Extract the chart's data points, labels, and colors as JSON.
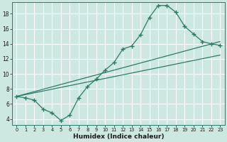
{
  "title": "",
  "xlabel": "Humidex (Indice chaleur)",
  "bg_color": "#cce8e0",
  "grid_color": "#ffffff",
  "line_color": "#2d7a6a",
  "xlim": [
    -0.5,
    23.5
  ],
  "ylim": [
    3.2,
    19.5
  ],
  "xticks": [
    0,
    1,
    2,
    3,
    4,
    5,
    6,
    7,
    8,
    9,
    10,
    11,
    12,
    13,
    14,
    15,
    16,
    17,
    18,
    19,
    20,
    21,
    22,
    23
  ],
  "yticks": [
    4,
    6,
    8,
    10,
    12,
    14,
    16,
    18
  ],
  "zigzag_x": [
    0,
    1,
    2,
    3,
    4,
    5,
    6,
    7,
    8,
    9,
    10,
    11,
    12,
    13,
    14,
    15,
    16,
    17,
    18,
    19,
    20,
    21,
    22,
    23
  ],
  "zigzag_y": [
    7.0,
    6.8,
    6.5,
    5.3,
    4.8,
    3.8,
    4.5,
    6.8,
    8.3,
    9.3,
    10.5,
    11.5,
    13.3,
    13.7,
    15.2,
    17.5,
    19.1,
    19.1,
    18.2,
    16.3,
    15.3,
    14.3,
    14.0,
    13.8
  ],
  "line1_x": [
    0,
    23
  ],
  "line1_y": [
    7.0,
    12.5
  ],
  "line2_x": [
    0,
    23
  ],
  "line2_y": [
    7.0,
    14.3
  ]
}
